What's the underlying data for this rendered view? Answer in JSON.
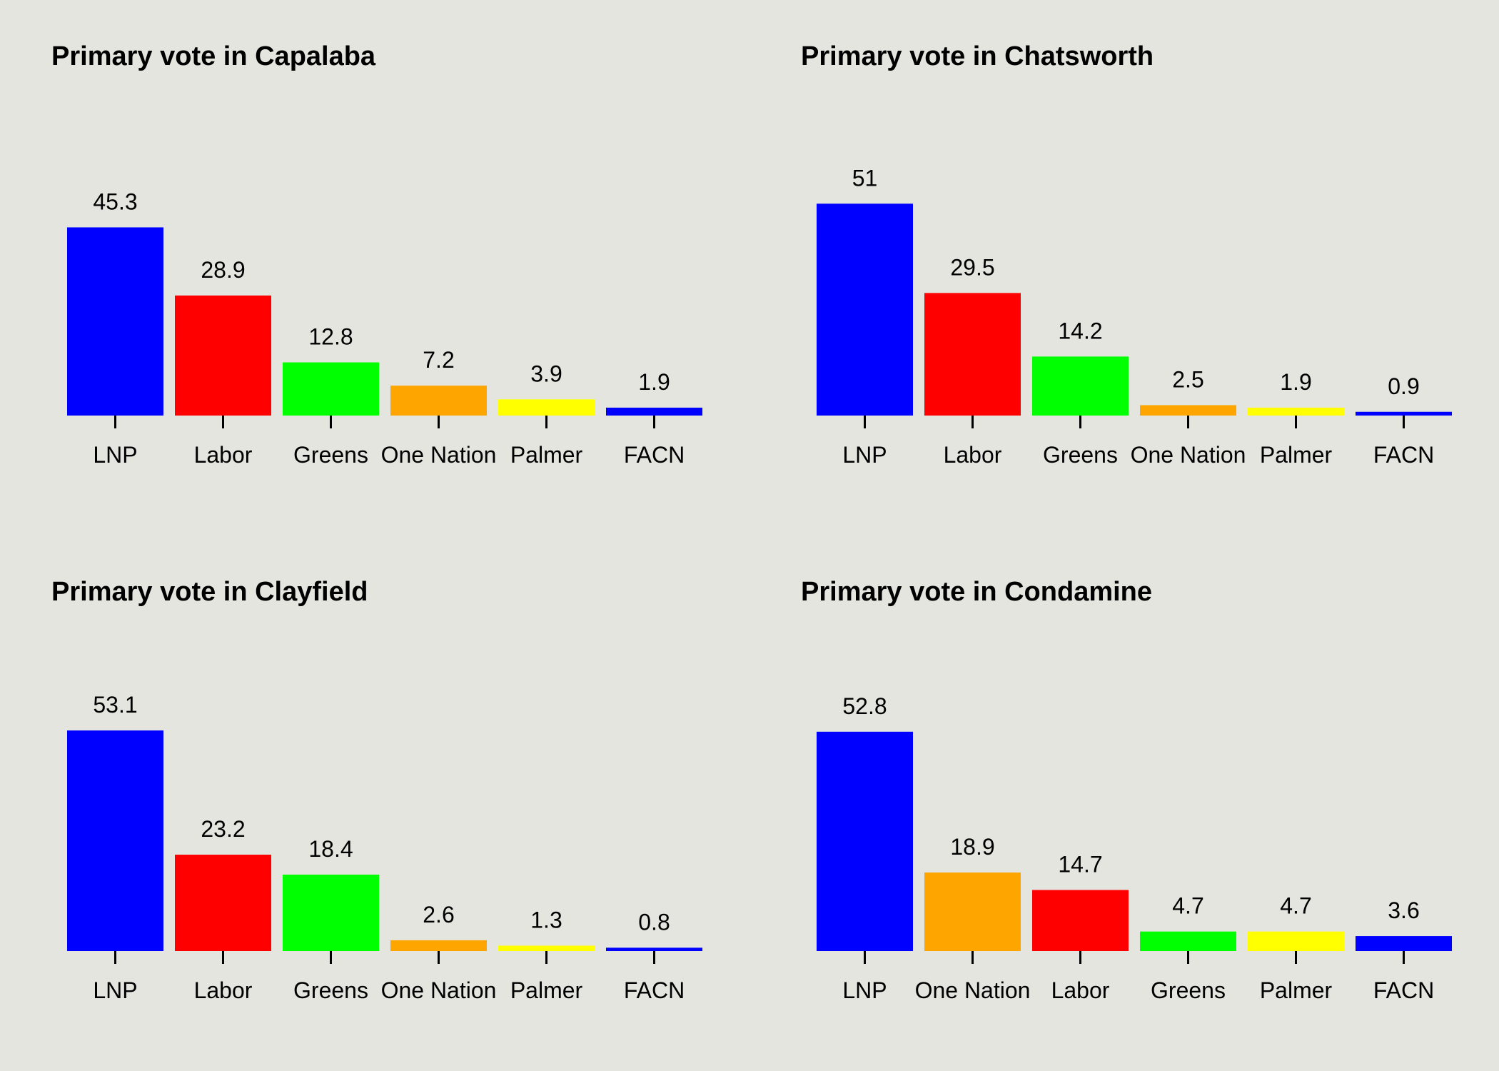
{
  "colors": {
    "background": "#e5e5df",
    "LNP": "#0000ff",
    "Labor": "#ff0000",
    "Greens": "#00ff00",
    "One Nation": "#ffa500",
    "Palmer": "#ffff00",
    "FACN": "#0000ff"
  },
  "chart_data": [
    {
      "type": "bar",
      "title": "Primary vote in Capalaba",
      "categories": [
        "LNP",
        "Labor",
        "Greens",
        "One Nation",
        "Palmer",
        "FACN"
      ],
      "values": [
        45.3,
        28.9,
        12.8,
        7.2,
        3.9,
        1.9
      ],
      "data_labels": [
        "45.3",
        "28.9",
        "12.8",
        "7.2",
        "3.9",
        "1.9"
      ],
      "colors": [
        "#0000ff",
        "#ff0000",
        "#00ff00",
        "#ffa500",
        "#ffff00",
        "#0000ff"
      ],
      "ylim": [
        0,
        55
      ],
      "xlabel": "",
      "ylabel": "",
      "grid": false,
      "legend": "none"
    },
    {
      "type": "bar",
      "title": "Primary vote in Chatsworth",
      "categories": [
        "LNP",
        "Labor",
        "Greens",
        "One Nation",
        "Palmer",
        "FACN"
      ],
      "values": [
        51,
        29.5,
        14.2,
        2.5,
        1.9,
        0.9
      ],
      "data_labels": [
        "51",
        "29.5",
        "14.2",
        "2.5",
        "1.9",
        "0.9"
      ],
      "colors": [
        "#0000ff",
        "#ff0000",
        "#00ff00",
        "#ffa500",
        "#ffff00",
        "#0000ff"
      ],
      "ylim": [
        0,
        55
      ],
      "xlabel": "",
      "ylabel": "",
      "grid": false,
      "legend": "none"
    },
    {
      "type": "bar",
      "title": "Primary vote in Clayfield",
      "categories": [
        "LNP",
        "Labor",
        "Greens",
        "One Nation",
        "Palmer",
        "FACN"
      ],
      "values": [
        53.1,
        23.2,
        18.4,
        2.6,
        1.3,
        0.8
      ],
      "data_labels": [
        "53.1",
        "23.2",
        "18.4",
        "2.6",
        "1.3",
        "0.8"
      ],
      "colors": [
        "#0000ff",
        "#ff0000",
        "#00ff00",
        "#ffa500",
        "#ffff00",
        "#0000ff"
      ],
      "ylim": [
        0,
        55
      ],
      "xlabel": "",
      "ylabel": "",
      "grid": false,
      "legend": "none"
    },
    {
      "type": "bar",
      "title": "Primary vote in Condamine",
      "categories": [
        "LNP",
        "One Nation",
        "Labor",
        "Greens",
        "Palmer",
        "FACN"
      ],
      "values": [
        52.8,
        18.9,
        14.7,
        4.7,
        4.7,
        3.6
      ],
      "data_labels": [
        "52.8",
        "18.9",
        "14.7",
        "4.7",
        "4.7",
        "3.6"
      ],
      "colors": [
        "#0000ff",
        "#ffa500",
        "#ff0000",
        "#00ff00",
        "#ffff00",
        "#0000ff"
      ],
      "ylim": [
        0,
        55
      ],
      "xlabel": "",
      "ylabel": "",
      "grid": false,
      "legend": "none"
    }
  ]
}
